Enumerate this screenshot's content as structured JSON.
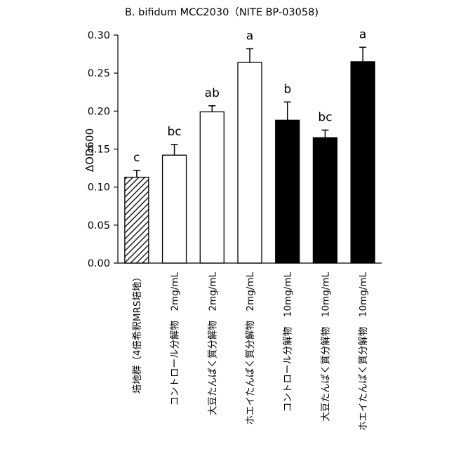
{
  "chart_data": {
    "type": "bar",
    "title": "B. bifidum  MCC2030（NITE BP-03058)",
    "ylabel": "ΔOD600",
    "xlabel": "",
    "ylim": [
      0,
      0.3
    ],
    "yticks": [
      "0.00",
      "0.05",
      "0.10",
      "0.15",
      "0.20",
      "0.25",
      "0.30"
    ],
    "grid": false,
    "legend": "none",
    "categories": [
      "培地群（4倍希釈MRS培地）",
      "コントロール分解物　2mg/mL",
      "大豆たんぱく質分解物　2mg/mL",
      "ホエイたんぱく質分解物　2mg/mL",
      "コントロール分解物　10mg/mL",
      "大豆たんぱく質分解物　10mg/mL",
      "ホエイたんぱく質分解物　10mg/mL"
    ],
    "values": [
      0.113,
      0.142,
      0.199,
      0.264,
      0.188,
      0.165,
      0.265
    ],
    "errors": [
      0.009,
      0.014,
      0.008,
      0.018,
      0.024,
      0.01,
      0.019
    ],
    "significance": [
      "c",
      "bc",
      "ab",
      "a",
      "b",
      "bc",
      "a"
    ],
    "fills": [
      "hatched",
      "white",
      "white",
      "white",
      "black",
      "black",
      "black"
    ],
    "colors": {
      "bar_black": "#000000",
      "bar_white": "#ffffff",
      "axis": "#000000"
    }
  }
}
